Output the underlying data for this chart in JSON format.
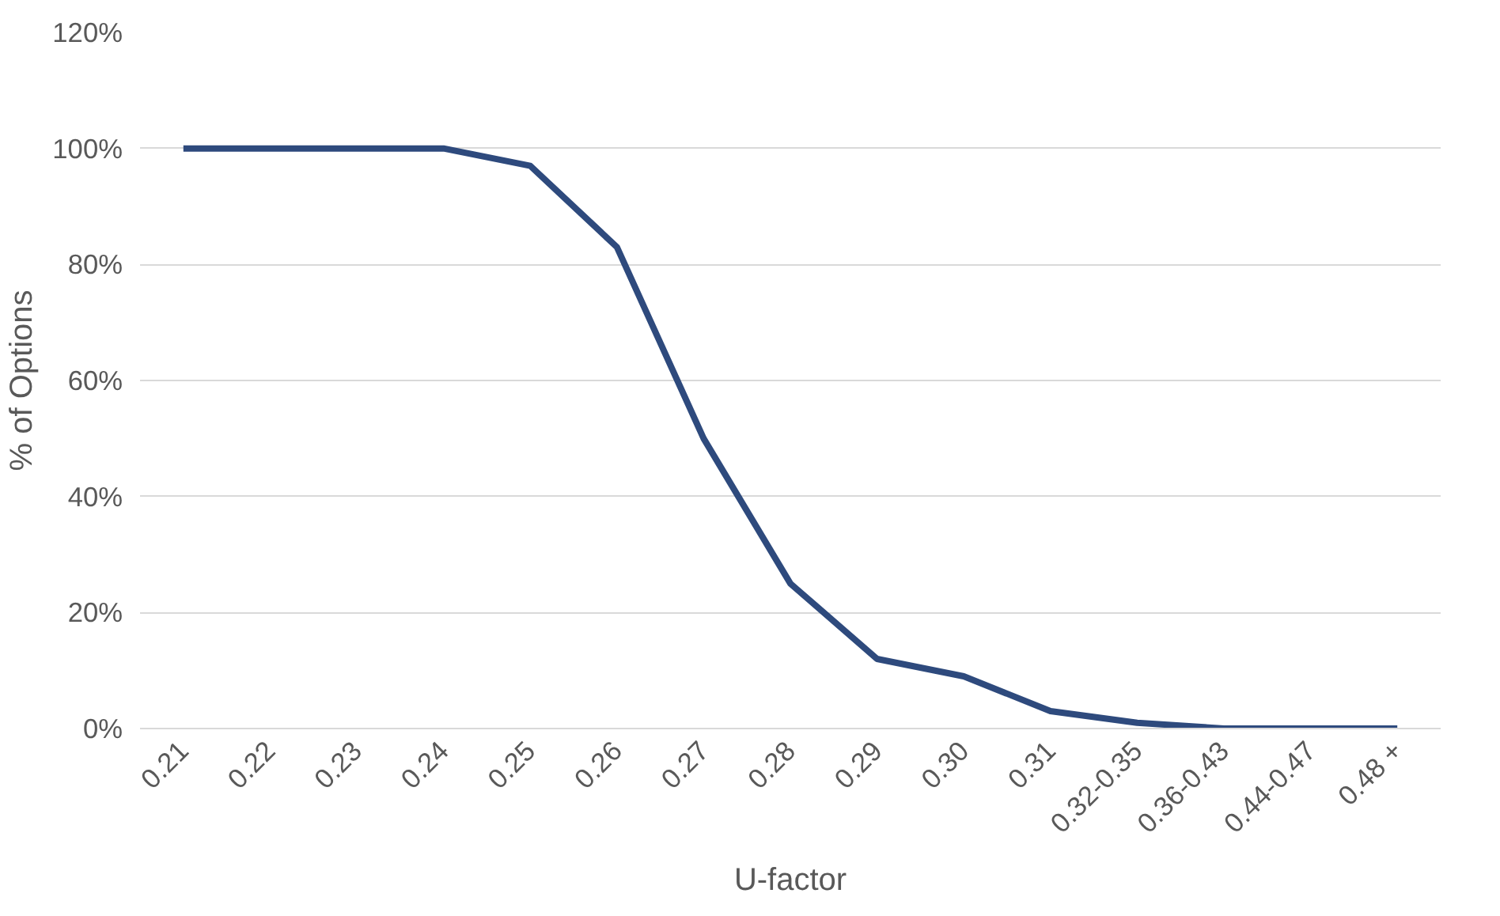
{
  "chart_data": {
    "type": "line",
    "xlabel": "U-factor",
    "ylabel": "% of Options",
    "categories": [
      "0.21",
      "0.22",
      "0.23",
      "0.24",
      "0.25",
      "0.26",
      "0.27",
      "0.28",
      "0.29",
      "0.30",
      "0.31",
      "0.32-0.35",
      "0.36-0.43",
      "0.44-0.47",
      "0.48 +"
    ],
    "series": [
      {
        "color": "#2e4a7d",
        "values": [
          100,
          100,
          100,
          100,
          97,
          83,
          50,
          25,
          12,
          9,
          3,
          1,
          0,
          0,
          0
        ]
      }
    ],
    "ylim": [
      0,
      120
    ],
    "yticks": [
      {
        "value": 0,
        "label": "0%"
      },
      {
        "value": 20,
        "label": "20%"
      },
      {
        "value": 40,
        "label": "40%"
      },
      {
        "value": 60,
        "label": "60%"
      },
      {
        "value": 80,
        "label": "80%"
      },
      {
        "value": 100,
        "label": "100%"
      },
      {
        "value": 120,
        "label": "120%"
      }
    ],
    "grid": "y",
    "line_style": "solid"
  }
}
